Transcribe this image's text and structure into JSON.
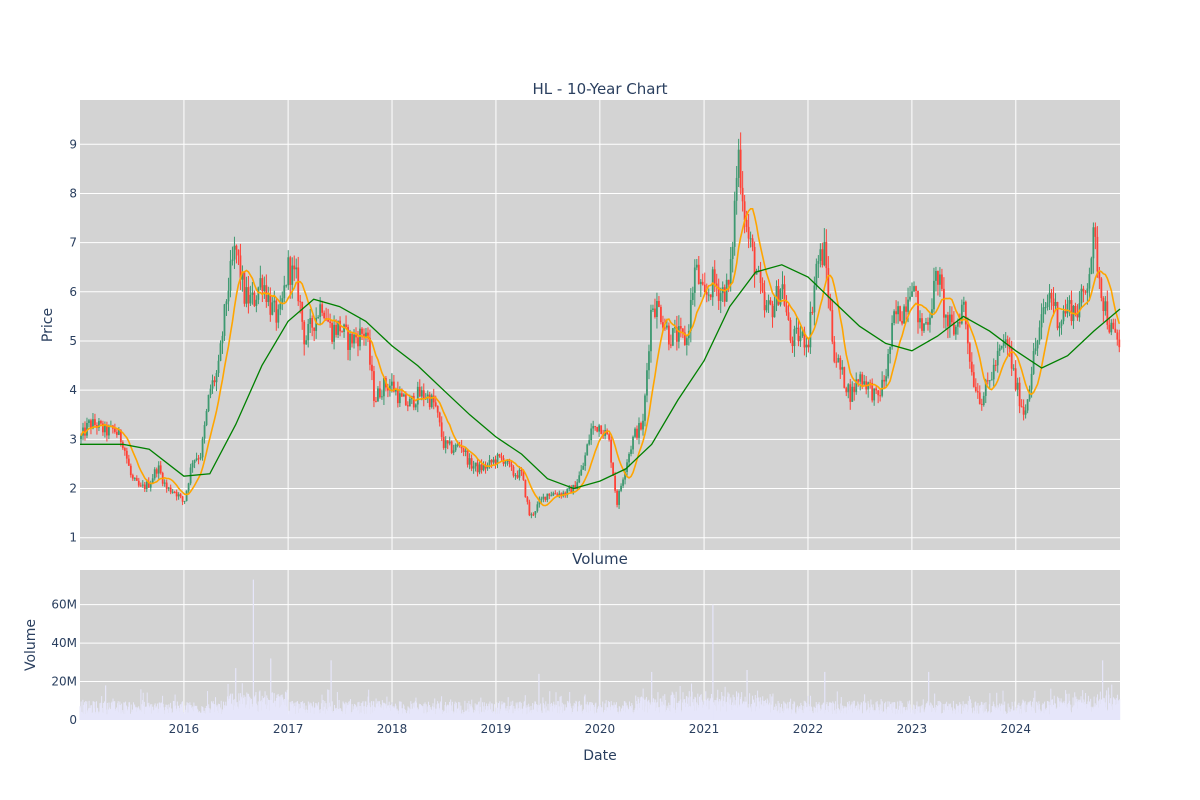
{
  "chart_data": [
    {
      "type": "candlestick",
      "title": "HL - 10-Year Chart",
      "ylabel": "Price",
      "ylim": [
        0.75,
        9.9
      ],
      "xlim": [
        "2015-01-01",
        "2025-01-01"
      ],
      "yticks": [
        "1",
        "2",
        "3",
        "4",
        "5",
        "6",
        "7",
        "8",
        "9"
      ],
      "grid": true,
      "background": "#d3d3d3",
      "colors": {
        "increasing": "#3d9970",
        "decreasing": "#ff4136",
        "ma_short": "#ffa500",
        "ma_long": "#008000"
      },
      "price_path": [
        [
          "2015-01-01",
          3.0
        ],
        [
          "2015-02-01",
          3.3
        ],
        [
          "2015-03-01",
          3.3
        ],
        [
          "2015-04-01",
          3.15
        ],
        [
          "2015-05-01",
          3.2
        ],
        [
          "2015-06-01",
          2.95
        ],
        [
          "2015-07-01",
          2.2
        ],
        [
          "2015-08-01",
          2.0
        ],
        [
          "2015-09-01",
          2.1
        ],
        [
          "2015-10-01",
          2.45
        ],
        [
          "2015-11-01",
          2.0
        ],
        [
          "2015-12-01",
          1.95
        ],
        [
          "2016-01-01",
          1.7
        ],
        [
          "2016-02-01",
          2.6
        ],
        [
          "2016-03-01",
          2.7
        ],
        [
          "2016-04-01",
          4.0
        ],
        [
          "2016-05-01",
          4.4
        ],
        [
          "2016-06-01",
          6.0
        ],
        [
          "2016-07-01",
          6.9
        ],
        [
          "2016-08-01",
          5.9
        ],
        [
          "2016-09-01",
          5.8
        ],
        [
          "2016-10-01",
          6.3
        ],
        [
          "2016-11-01",
          5.7
        ],
        [
          "2016-12-01",
          5.4
        ],
        [
          "2017-01-01",
          6.5
        ],
        [
          "2017-02-01",
          6.2
        ],
        [
          "2017-03-01",
          5.0
        ],
        [
          "2017-04-01",
          5.4
        ],
        [
          "2017-05-01",
          5.8
        ],
        [
          "2017-06-01",
          5.2
        ],
        [
          "2017-07-01",
          5.3
        ],
        [
          "2017-08-01",
          5.0
        ],
        [
          "2017-09-01",
          5.1
        ],
        [
          "2017-10-01",
          5.2
        ],
        [
          "2017-11-01",
          3.8
        ],
        [
          "2017-12-01",
          4.1
        ],
        [
          "2018-01-01",
          4.1
        ],
        [
          "2018-02-01",
          3.8
        ],
        [
          "2018-03-01",
          3.7
        ],
        [
          "2018-04-01",
          3.9
        ],
        [
          "2018-05-01",
          3.9
        ],
        [
          "2018-06-01",
          3.7
        ],
        [
          "2018-07-01",
          2.9
        ],
        [
          "2018-08-01",
          2.8
        ],
        [
          "2018-09-01",
          2.9
        ],
        [
          "2018-10-01",
          2.5
        ],
        [
          "2018-11-01",
          2.4
        ],
        [
          "2018-12-01",
          2.45
        ],
        [
          "2019-01-01",
          2.6
        ],
        [
          "2019-02-01",
          2.6
        ],
        [
          "2019-03-01",
          2.3
        ],
        [
          "2019-04-01",
          2.3
        ],
        [
          "2019-05-01",
          1.4
        ],
        [
          "2019-06-01",
          1.7
        ],
        [
          "2019-07-01",
          1.9
        ],
        [
          "2019-08-01",
          1.9
        ],
        [
          "2019-09-01",
          1.9
        ],
        [
          "2019-10-01",
          2.0
        ],
        [
          "2019-11-01",
          2.4
        ],
        [
          "2019-12-01",
          3.2
        ],
        [
          "2020-01-01",
          3.3
        ],
        [
          "2020-02-01",
          3.0
        ],
        [
          "2020-03-01",
          1.7
        ],
        [
          "2020-04-01",
          2.5
        ],
        [
          "2020-05-01",
          3.1
        ],
        [
          "2020-06-01",
          3.3
        ],
        [
          "2020-07-01",
          5.8
        ],
        [
          "2020-08-01",
          5.6
        ],
        [
          "2020-09-01",
          5.1
        ],
        [
          "2020-10-01",
          5.1
        ],
        [
          "2020-11-01",
          5.0
        ],
        [
          "2020-12-01",
          6.5
        ],
        [
          "2021-01-01",
          5.8
        ],
        [
          "2021-02-01",
          6.2
        ],
        [
          "2021-03-01",
          6.0
        ],
        [
          "2021-04-01",
          6.1
        ],
        [
          "2021-05-01",
          8.9
        ],
        [
          "2021-06-01",
          7.2
        ],
        [
          "2021-07-01",
          6.5
        ],
        [
          "2021-08-01",
          5.6
        ],
        [
          "2021-09-01",
          5.7
        ],
        [
          "2021-10-01",
          6.2
        ],
        [
          "2021-11-01",
          5.0
        ],
        [
          "2021-12-01",
          5.1
        ],
        [
          "2022-01-01",
          5.0
        ],
        [
          "2022-02-01",
          6.6
        ],
        [
          "2022-03-01",
          6.8
        ],
        [
          "2022-04-01",
          4.8
        ],
        [
          "2022-05-01",
          4.3
        ],
        [
          "2022-06-01",
          3.9
        ],
        [
          "2022-07-01",
          4.3
        ],
        [
          "2022-08-01",
          4.1
        ],
        [
          "2022-09-01",
          3.8
        ],
        [
          "2022-10-01",
          4.3
        ],
        [
          "2022-11-01",
          5.5
        ],
        [
          "2022-12-01",
          5.6
        ],
        [
          "2023-01-01",
          6.3
        ],
        [
          "2023-02-01",
          5.2
        ],
        [
          "2023-03-01",
          5.5
        ],
        [
          "2023-04-01",
          6.4
        ],
        [
          "2023-05-01",
          5.4
        ],
        [
          "2023-06-01",
          5.2
        ],
        [
          "2023-07-01",
          5.8
        ],
        [
          "2023-08-01",
          4.3
        ],
        [
          "2023-09-01",
          3.8
        ],
        [
          "2023-10-01",
          4.2
        ],
        [
          "2023-11-01",
          4.7
        ],
        [
          "2023-12-01",
          5.0
        ],
        [
          "2024-01-01",
          4.1
        ],
        [
          "2024-02-01",
          3.5
        ],
        [
          "2024-03-01",
          4.6
        ],
        [
          "2024-04-01",
          5.4
        ],
        [
          "2024-05-01",
          6.0
        ],
        [
          "2024-06-01",
          5.4
        ],
        [
          "2024-07-01",
          5.7
        ],
        [
          "2024-08-01",
          5.6
        ],
        [
          "2024-09-01",
          6.0
        ],
        [
          "2024-10-01",
          7.1
        ],
        [
          "2024-11-01",
          5.9
        ],
        [
          "2024-12-01",
          5.2
        ],
        [
          "2025-01-01",
          4.9
        ]
      ],
      "ma_long": [
        [
          "2015-01-01",
          2.9
        ],
        [
          "2015-06-01",
          2.9
        ],
        [
          "2015-09-01",
          2.8
        ],
        [
          "2016-01-01",
          2.25
        ],
        [
          "2016-04-01",
          2.3
        ],
        [
          "2016-07-01",
          3.3
        ],
        [
          "2016-10-01",
          4.5
        ],
        [
          "2017-01-01",
          5.4
        ],
        [
          "2017-04-01",
          5.85
        ],
        [
          "2017-07-01",
          5.7
        ],
        [
          "2017-10-01",
          5.4
        ],
        [
          "2018-01-01",
          4.9
        ],
        [
          "2018-04-01",
          4.5
        ],
        [
          "2018-07-01",
          4.0
        ],
        [
          "2018-10-01",
          3.5
        ],
        [
          "2019-01-01",
          3.05
        ],
        [
          "2019-04-01",
          2.7
        ],
        [
          "2019-07-01",
          2.2
        ],
        [
          "2019-10-01",
          2.0
        ],
        [
          "2020-01-01",
          2.15
        ],
        [
          "2020-04-01",
          2.4
        ],
        [
          "2020-07-01",
          2.9
        ],
        [
          "2020-10-01",
          3.8
        ],
        [
          "2021-01-01",
          4.6
        ],
        [
          "2021-04-01",
          5.7
        ],
        [
          "2021-07-01",
          6.4
        ],
        [
          "2021-10-01",
          6.55
        ],
        [
          "2022-01-01",
          6.3
        ],
        [
          "2022-04-01",
          5.8
        ],
        [
          "2022-07-01",
          5.3
        ],
        [
          "2022-10-01",
          4.95
        ],
        [
          "2023-01-01",
          4.8
        ],
        [
          "2023-04-01",
          5.1
        ],
        [
          "2023-07-01",
          5.5
        ],
        [
          "2023-10-01",
          5.2
        ],
        [
          "2024-01-01",
          4.8
        ],
        [
          "2024-04-01",
          4.45
        ],
        [
          "2024-07-01",
          4.7
        ],
        [
          "2024-10-01",
          5.2
        ],
        [
          "2025-01-01",
          5.65
        ]
      ]
    },
    {
      "type": "bar",
      "title": "Volume",
      "ylabel": "Volume",
      "xlabel": "Date",
      "yticks": [
        "0",
        "20M",
        "40M",
        "60M"
      ],
      "ylim_millions": [
        0,
        78
      ],
      "xticks": [
        "2016",
        "2017",
        "2018",
        "2019",
        "2020",
        "2021",
        "2022",
        "2023",
        "2024"
      ],
      "color": "#e6e6fa",
      "background": "#d3d3d3",
      "peaks_millions": [
        [
          "2015-04-01",
          18
        ],
        [
          "2016-07-01",
          27
        ],
        [
          "2016-09-01",
          73
        ],
        [
          "2016-11-01",
          32
        ],
        [
          "2017-06-01",
          31
        ],
        [
          "2019-06-01",
          24
        ],
        [
          "2020-07-01",
          25
        ],
        [
          "2021-02-01",
          60
        ],
        [
          "2021-06-01",
          26
        ],
        [
          "2022-03-01",
          25
        ],
        [
          "2023-03-01",
          25
        ],
        [
          "2024-11-01",
          31
        ]
      ]
    }
  ]
}
